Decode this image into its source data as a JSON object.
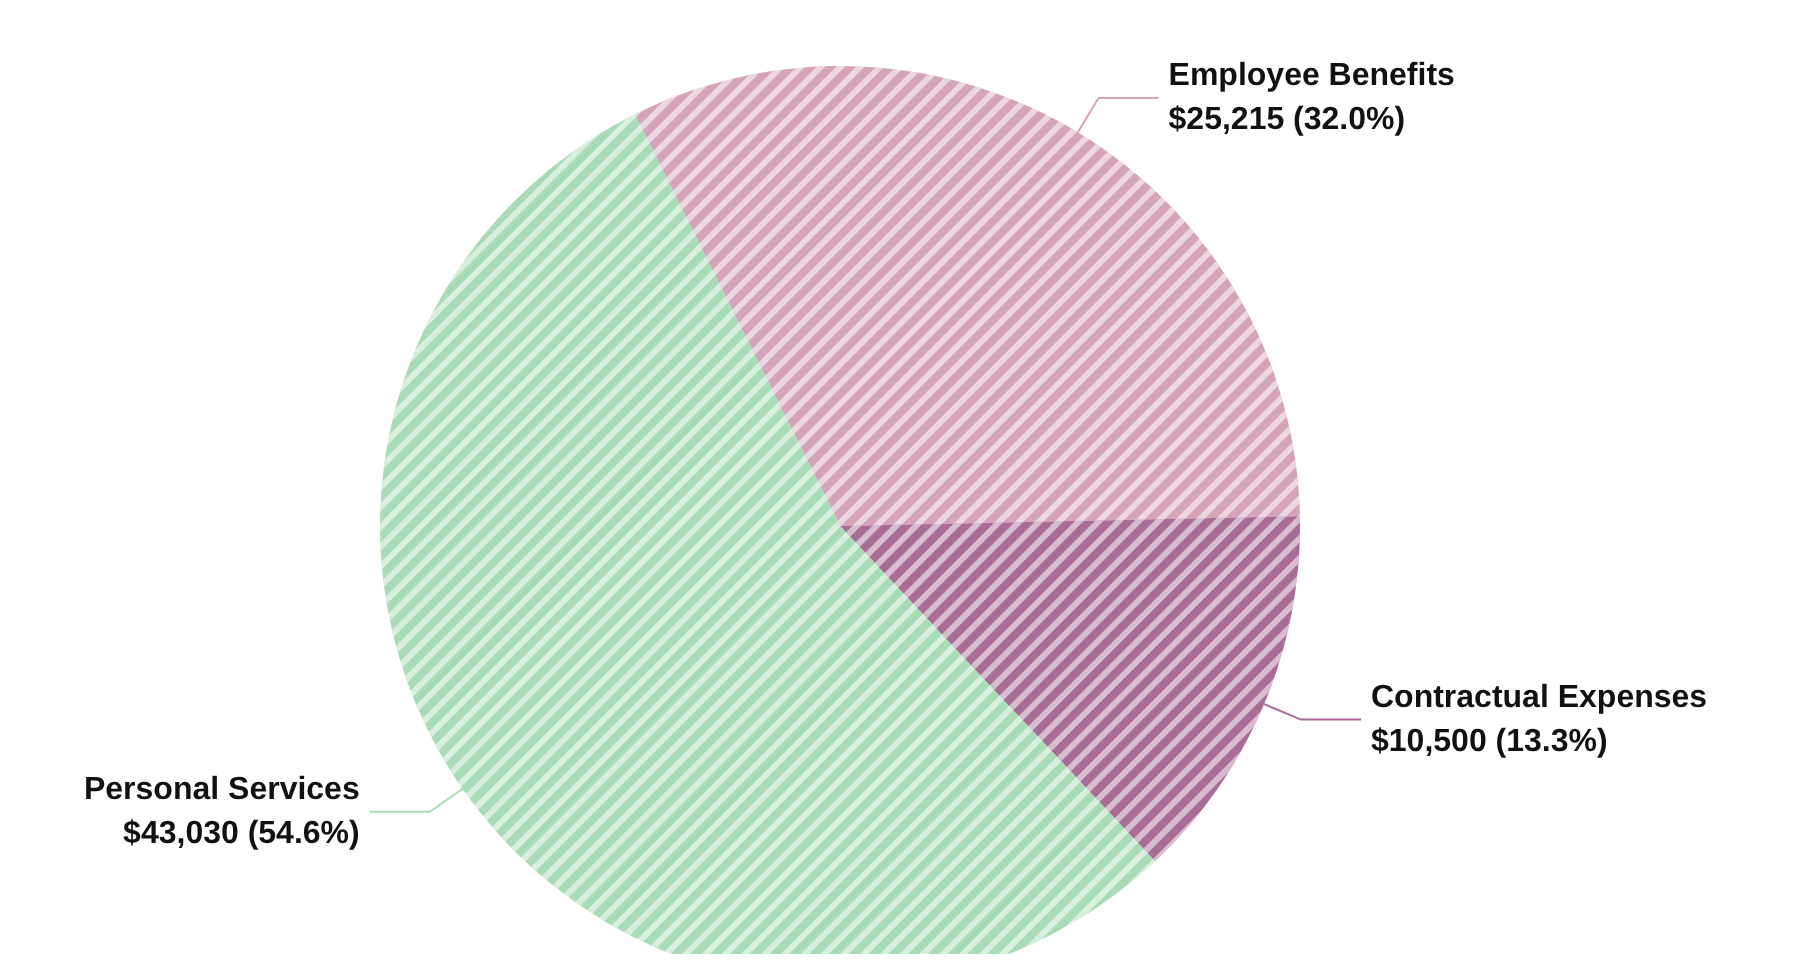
{
  "chart_data": {
    "type": "pie",
    "categories": [
      "Employee Benefits",
      "Contractual Expenses",
      "Personal Services"
    ],
    "values": [
      25215,
      10500,
      43030
    ],
    "value_labels": [
      "$25,215 (32.0%)",
      "$10,500 (13.3%)",
      "$43,030 (54.6%)"
    ],
    "colors": [
      "#d4a4b9",
      "#a86c97",
      "#a9dcb6"
    ],
    "legend": false
  }
}
